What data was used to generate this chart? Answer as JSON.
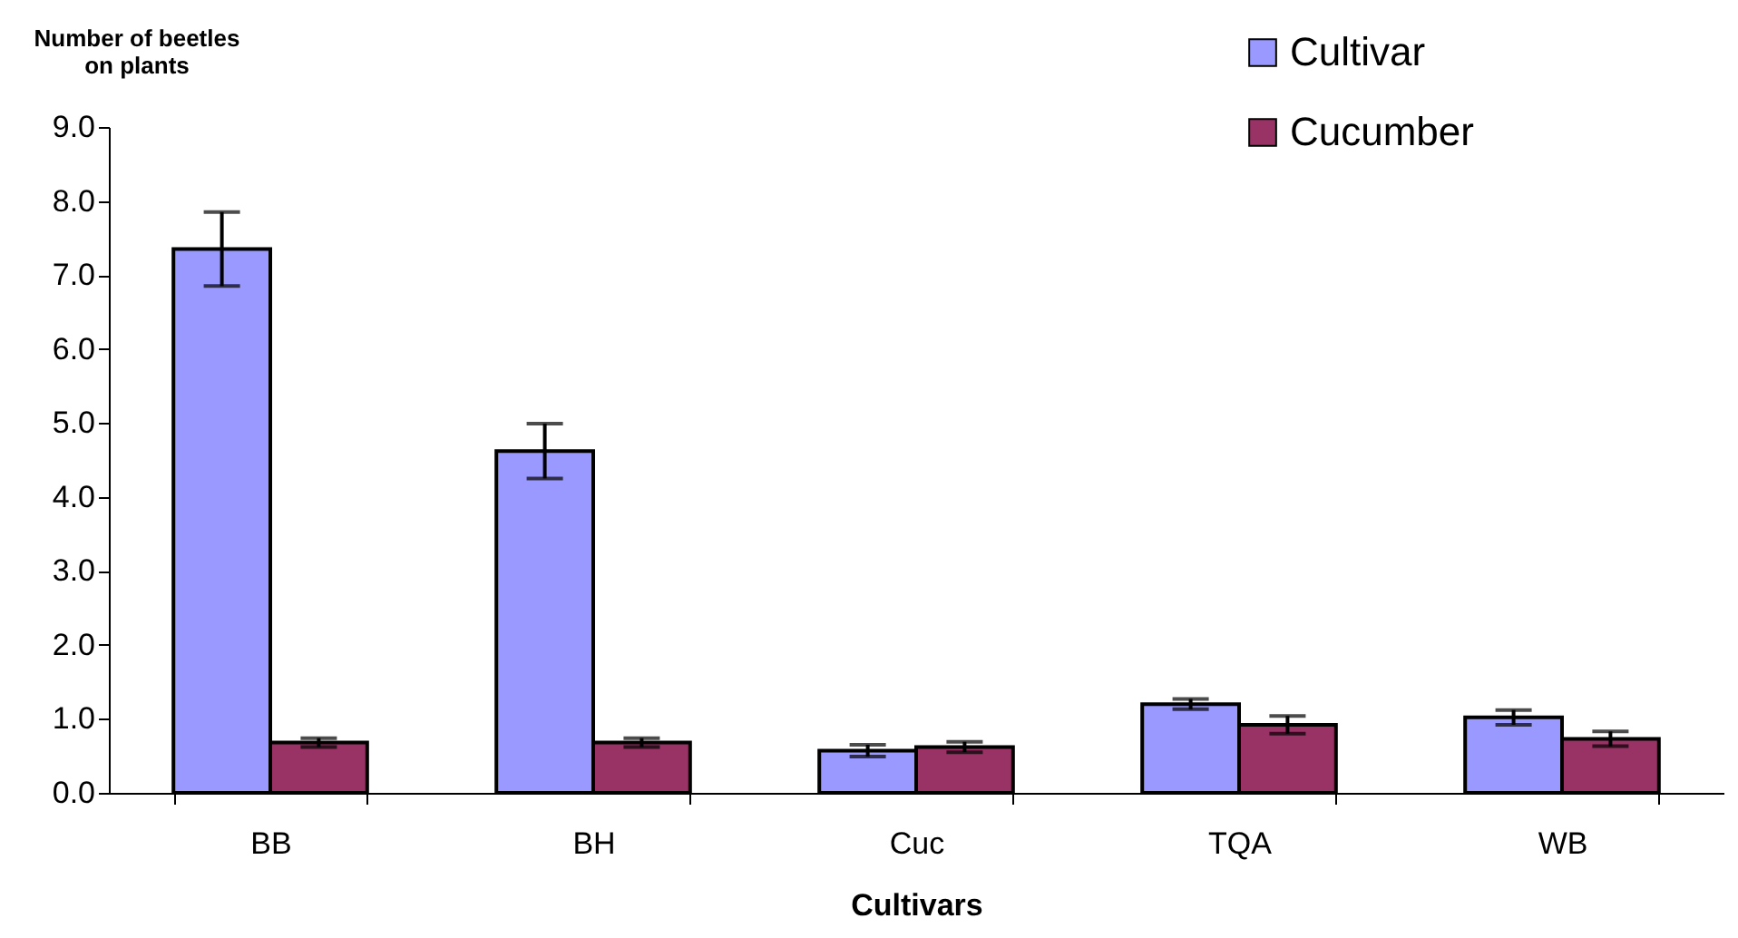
{
  "chart_data": {
    "type": "bar",
    "xlabel": "Cultivars",
    "ylabel": "Number of beetles on plants",
    "categories": [
      "BB",
      "BH",
      "Cuc",
      "TQA",
      "WB"
    ],
    "series": [
      {
        "name": "Cultivar",
        "color": "#9999ff",
        "values": [
          7.35,
          4.62,
          0.57,
          1.2,
          1.02
        ],
        "errors": [
          0.5,
          0.37,
          0.08,
          0.07,
          0.1
        ]
      },
      {
        "name": "Cucumber",
        "color": "#993366",
        "values": [
          0.68,
          0.68,
          0.62,
          0.92,
          0.73
        ],
        "errors": [
          0.06,
          0.06,
          0.07,
          0.12,
          0.1
        ]
      }
    ],
    "ylim": [
      0,
      9
    ],
    "yticks": [
      {
        "value": 0,
        "label": "0.0"
      },
      {
        "value": 1,
        "label": "1.0"
      },
      {
        "value": 2,
        "label": "2.0"
      },
      {
        "value": 3,
        "label": "3.0"
      },
      {
        "value": 4,
        "label": "4.0"
      },
      {
        "value": 5,
        "label": "5.0"
      },
      {
        "value": 6,
        "label": "6.0"
      },
      {
        "value": 7,
        "label": "7.0"
      },
      {
        "value": 8,
        "label": "8.0"
      },
      {
        "value": 9,
        "label": "9.0"
      }
    ],
    "grid": false,
    "legend": "top right"
  }
}
